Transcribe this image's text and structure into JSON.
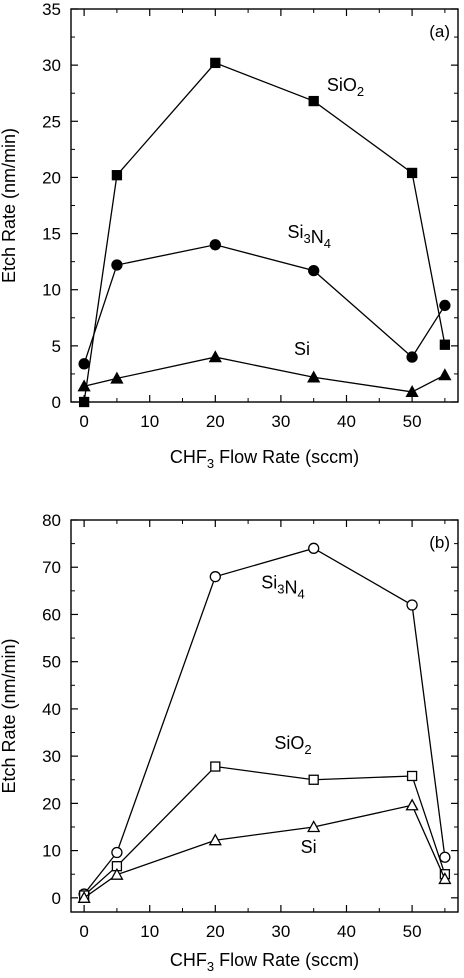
{
  "chart_data": [
    {
      "type": "line",
      "panel": "(a)",
      "xlabel_main": "CHF",
      "xlabel_sub": "3",
      "xlabel_rest": " Flow Rate (sccm)",
      "ylabel": "Etch Rate (nm/min)",
      "xlim": [
        -2,
        57
      ],
      "ylim": [
        0,
        35
      ],
      "xticks": [
        0,
        10,
        20,
        30,
        40,
        50
      ],
      "yticks": [
        0,
        5,
        10,
        15,
        20,
        25,
        30,
        35
      ],
      "series": [
        {
          "label_parts": [
            {
              "t": "SiO"
            },
            {
              "t": "2",
              "sub": true
            }
          ],
          "marker": "square",
          "filled": true,
          "x": [
            0,
            5,
            20,
            35,
            50,
            55
          ],
          "y": [
            0,
            20.2,
            30.2,
            26.8,
            20.4,
            5.1
          ],
          "label_at": [
            37,
            27.7
          ]
        },
        {
          "label_parts": [
            {
              "t": "Si"
            },
            {
              "t": "3",
              "sub": true
            },
            {
              "t": "N"
            },
            {
              "t": "4",
              "sub": true
            }
          ],
          "marker": "circle",
          "filled": true,
          "x": [
            0,
            5,
            20,
            35,
            50,
            55
          ],
          "y": [
            3.4,
            12.2,
            14.0,
            11.7,
            4.0,
            8.6
          ],
          "label_at": [
            31,
            14.6
          ]
        },
        {
          "label_parts": [
            {
              "t": "Si"
            }
          ],
          "marker": "triangle",
          "filled": true,
          "x": [
            0,
            5,
            20,
            35,
            50,
            55
          ],
          "y": [
            1.4,
            2.1,
            4.0,
            2.2,
            0.9,
            2.4
          ],
          "label_at": [
            32,
            4.2
          ]
        }
      ]
    },
    {
      "type": "line",
      "panel": "(b)",
      "xlabel_main": "CHF",
      "xlabel_sub": "3",
      "xlabel_rest": " Flow Rate (sccm)",
      "ylabel": "Etch Rate (nm/min)",
      "xlim": [
        -2,
        57
      ],
      "ylim": [
        -3,
        80
      ],
      "xticks": [
        0,
        10,
        20,
        30,
        40,
        50
      ],
      "yticks": [
        0,
        10,
        20,
        30,
        40,
        50,
        60,
        70,
        80
      ],
      "series": [
        {
          "label_parts": [
            {
              "t": "Si"
            },
            {
              "t": "3",
              "sub": true
            },
            {
              "t": "N"
            },
            {
              "t": "4",
              "sub": true
            }
          ],
          "marker": "circle",
          "filled": false,
          "x": [
            0,
            5,
            20,
            35,
            50,
            55
          ],
          "y": [
            0.8,
            9.6,
            68.0,
            74.0,
            62.0,
            8.6
          ],
          "label_at": [
            27,
            65.5
          ]
        },
        {
          "label_parts": [
            {
              "t": "SiO"
            },
            {
              "t": "2",
              "sub": true
            }
          ],
          "marker": "square",
          "filled": false,
          "x": [
            0,
            5,
            20,
            35,
            50,
            55
          ],
          "y": [
            0.5,
            6.7,
            27.8,
            25.0,
            25.8,
            5.0
          ],
          "label_at": [
            29,
            31.5
          ]
        },
        {
          "label_parts": [
            {
              "t": "Si"
            }
          ],
          "marker": "triangle",
          "filled": false,
          "x": [
            0,
            5,
            20,
            35,
            50,
            55
          ],
          "y": [
            0.0,
            4.9,
            12.2,
            15.0,
            19.6,
            4.0
          ],
          "label_at": [
            33,
            9.5
          ]
        }
      ]
    }
  ]
}
